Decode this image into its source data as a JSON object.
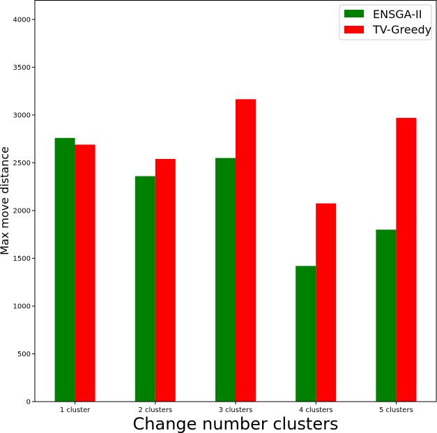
{
  "chart_data": {
    "type": "bar",
    "categories": [
      "1 cluster",
      "2 clusters",
      "3 clusters",
      "4 clusters",
      "5 clusters"
    ],
    "series": [
      {
        "name": "ENSGA-II",
        "color": "#008000",
        "values": [
          2760,
          2360,
          2550,
          1420,
          1800
        ]
      },
      {
        "name": "TV-Greedy",
        "color": "#ff0000",
        "values": [
          2690,
          2540,
          3165,
          2075,
          2970
        ]
      }
    ],
    "title": "",
    "xlabel": "Change number clusters",
    "ylabel": "Max move distance",
    "ylim": [
      0,
      4200
    ],
    "yticks": [
      0,
      500,
      1000,
      1500,
      2000,
      2500,
      3000,
      3500,
      4000
    ],
    "grid": false,
    "legend_position": "top-right"
  }
}
